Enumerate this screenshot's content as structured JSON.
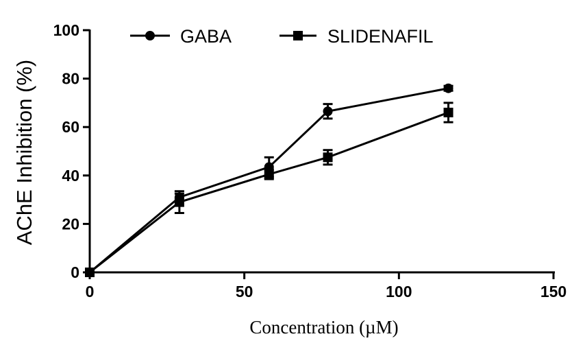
{
  "chart_data": {
    "type": "line",
    "xlabel": "Concentration (µM)",
    "ylabel": "AChE Inhibition (%)",
    "xlim": [
      0,
      150
    ],
    "ylim": [
      0,
      100
    ],
    "xticks": [
      0,
      50,
      100,
      150
    ],
    "yticks": [
      0,
      20,
      40,
      60,
      80,
      100
    ],
    "grid": false,
    "legend_position": "top",
    "series": [
      {
        "name": "GABA",
        "marker": "circle",
        "color": "#000000",
        "x": [
          0,
          29,
          58,
          77,
          116
        ],
        "y": [
          0,
          31,
          43.5,
          66.5,
          76
        ],
        "err": [
          0,
          1.5,
          4,
          3,
          1
        ]
      },
      {
        "name": "SLIDENAFIL",
        "marker": "square",
        "color": "#000000",
        "x": [
          0,
          29,
          58,
          77,
          116
        ],
        "y": [
          0,
          29,
          40.5,
          47.5,
          66
        ],
        "err": [
          0,
          4.5,
          2,
          3,
          4
        ]
      }
    ]
  }
}
